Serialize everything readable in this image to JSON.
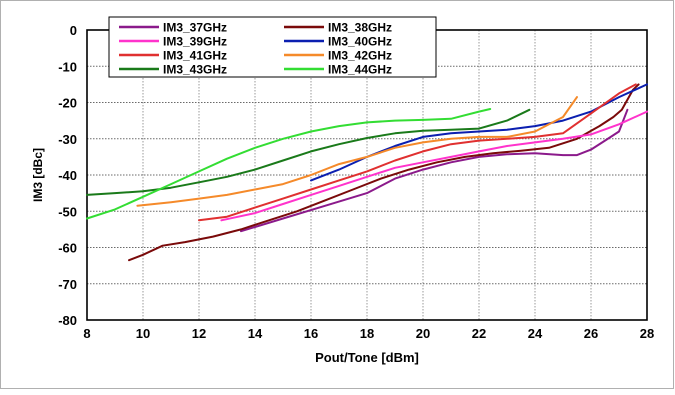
{
  "chart_data": {
    "type": "line",
    "title": "",
    "xlabel": "Pout/Tone [dBm]",
    "ylabel": "IM3 [dBc]",
    "xlim": [
      8,
      28
    ],
    "ylim": [
      -80,
      0
    ],
    "xticks": [
      8,
      10,
      12,
      14,
      16,
      18,
      20,
      22,
      24,
      26,
      28
    ],
    "yticks": [
      0,
      -10,
      -20,
      -30,
      -40,
      -50,
      -60,
      -70,
      -80
    ],
    "grid": true,
    "legend_position": "top-left",
    "series": [
      {
        "name": "IM3_37GHz",
        "color": "#8B1A8B",
        "points": [
          [
            13.5,
            -55.5
          ],
          [
            15,
            -52
          ],
          [
            16.5,
            -48.5
          ],
          [
            18,
            -45
          ],
          [
            19,
            -41
          ],
          [
            20,
            -38.5
          ],
          [
            21,
            -36.5
          ],
          [
            22,
            -35
          ],
          [
            23,
            -34.3
          ],
          [
            24,
            -34
          ],
          [
            25,
            -34.5
          ],
          [
            25.5,
            -34.5
          ],
          [
            26,
            -33
          ],
          [
            26.5,
            -30.5
          ],
          [
            27,
            -28
          ],
          [
            27.3,
            -22
          ]
        ]
      },
      {
        "name": "IM3_38GHz",
        "color": "#7A0A0A",
        "points": [
          [
            9.5,
            -63.5
          ],
          [
            10,
            -62
          ],
          [
            10.7,
            -59.5
          ],
          [
            11.5,
            -58.5
          ],
          [
            12.5,
            -57
          ],
          [
            13.5,
            -55
          ],
          [
            14.5,
            -52.5
          ],
          [
            15.5,
            -50
          ],
          [
            16.5,
            -47
          ],
          [
            17.5,
            -44
          ],
          [
            18.5,
            -41
          ],
          [
            19.5,
            -38.5
          ],
          [
            20.5,
            -36.5
          ],
          [
            21.5,
            -35
          ],
          [
            22.5,
            -34
          ],
          [
            23.5,
            -33.3
          ],
          [
            24.5,
            -32.5
          ],
          [
            25.5,
            -30
          ],
          [
            26.3,
            -26.5
          ],
          [
            26.8,
            -24
          ],
          [
            27.1,
            -22
          ],
          [
            27.5,
            -16.5
          ],
          [
            27.7,
            -15
          ]
        ]
      },
      {
        "name": "IM3_39GHz",
        "color": "#FF33CC",
        "points": [
          [
            12.8,
            -52.5
          ],
          [
            14,
            -50.5
          ],
          [
            15,
            -48
          ],
          [
            16,
            -45.5
          ],
          [
            17,
            -43
          ],
          [
            18,
            -40.5
          ],
          [
            19,
            -38
          ],
          [
            20,
            -36.5
          ],
          [
            21,
            -35
          ],
          [
            22,
            -33.5
          ],
          [
            23,
            -32
          ],
          [
            24,
            -31
          ],
          [
            25,
            -30
          ],
          [
            26,
            -28.8
          ],
          [
            27,
            -26
          ],
          [
            28,
            -22.5
          ]
        ]
      },
      {
        "name": "IM3_40GHz",
        "color": "#0B1FB0",
        "points": [
          [
            16,
            -41.5
          ],
          [
            17,
            -38.5
          ],
          [
            18,
            -35
          ],
          [
            19,
            -32
          ],
          [
            20,
            -29.5
          ],
          [
            21,
            -28.5
          ],
          [
            22,
            -28
          ],
          [
            23,
            -27.5
          ],
          [
            24,
            -26.5
          ],
          [
            25,
            -25
          ],
          [
            26,
            -22.5
          ],
          [
            27,
            -18.5
          ],
          [
            28,
            -15
          ]
        ]
      },
      {
        "name": "IM3_41GHz",
        "color": "#E03030",
        "points": [
          [
            12,
            -52.5
          ],
          [
            13,
            -51.5
          ],
          [
            14,
            -49
          ],
          [
            15,
            -46.5
          ],
          [
            16,
            -44
          ],
          [
            17,
            -41.5
          ],
          [
            18,
            -39
          ],
          [
            19,
            -36
          ],
          [
            20,
            -33.5
          ],
          [
            21,
            -31.5
          ],
          [
            22,
            -30.5
          ],
          [
            23,
            -30
          ],
          [
            24,
            -29.5
          ],
          [
            25,
            -28.5
          ],
          [
            26,
            -23
          ],
          [
            27,
            -17.5
          ],
          [
            27.6,
            -15
          ]
        ]
      },
      {
        "name": "IM3_42GHz",
        "color": "#F58A2A",
        "points": [
          [
            9.8,
            -48.5
          ],
          [
            11,
            -47.5
          ],
          [
            12,
            -46.5
          ],
          [
            13,
            -45.5
          ],
          [
            14,
            -44
          ],
          [
            15,
            -42.5
          ],
          [
            16,
            -40
          ],
          [
            17,
            -37
          ],
          [
            18,
            -35
          ],
          [
            19,
            -32.5
          ],
          [
            20,
            -31
          ],
          [
            21,
            -30
          ],
          [
            22,
            -29.5
          ],
          [
            23,
            -29.5
          ],
          [
            24,
            -28
          ],
          [
            25,
            -24
          ],
          [
            25.5,
            -18.5
          ]
        ]
      },
      {
        "name": "IM3_43GHz",
        "color": "#1A7A1A",
        "points": [
          [
            8,
            -45.5
          ],
          [
            9,
            -45
          ],
          [
            10,
            -44.5
          ],
          [
            11,
            -43.5
          ],
          [
            12,
            -42
          ],
          [
            13,
            -40.5
          ],
          [
            14,
            -38.5
          ],
          [
            15,
            -36
          ],
          [
            16,
            -33.5
          ],
          [
            17,
            -31.5
          ],
          [
            18,
            -29.8
          ],
          [
            19,
            -28.5
          ],
          [
            20,
            -27.8
          ],
          [
            21,
            -27.5
          ],
          [
            22,
            -27.2
          ],
          [
            23,
            -25
          ],
          [
            23.8,
            -22
          ]
        ]
      },
      {
        "name": "IM3_44GHz",
        "color": "#33DD33",
        "points": [
          [
            8,
            -52
          ],
          [
            9,
            -49.5
          ],
          [
            10,
            -46
          ],
          [
            11,
            -42.5
          ],
          [
            12,
            -39
          ],
          [
            13,
            -35.5
          ],
          [
            14,
            -32.5
          ],
          [
            15,
            -30
          ],
          [
            16,
            -28
          ],
          [
            17,
            -26.5
          ],
          [
            18,
            -25.5
          ],
          [
            19,
            -25
          ],
          [
            20,
            -24.8
          ],
          [
            21,
            -24.5
          ],
          [
            22,
            -22.5
          ],
          [
            22.4,
            -21.8
          ]
        ]
      }
    ]
  }
}
